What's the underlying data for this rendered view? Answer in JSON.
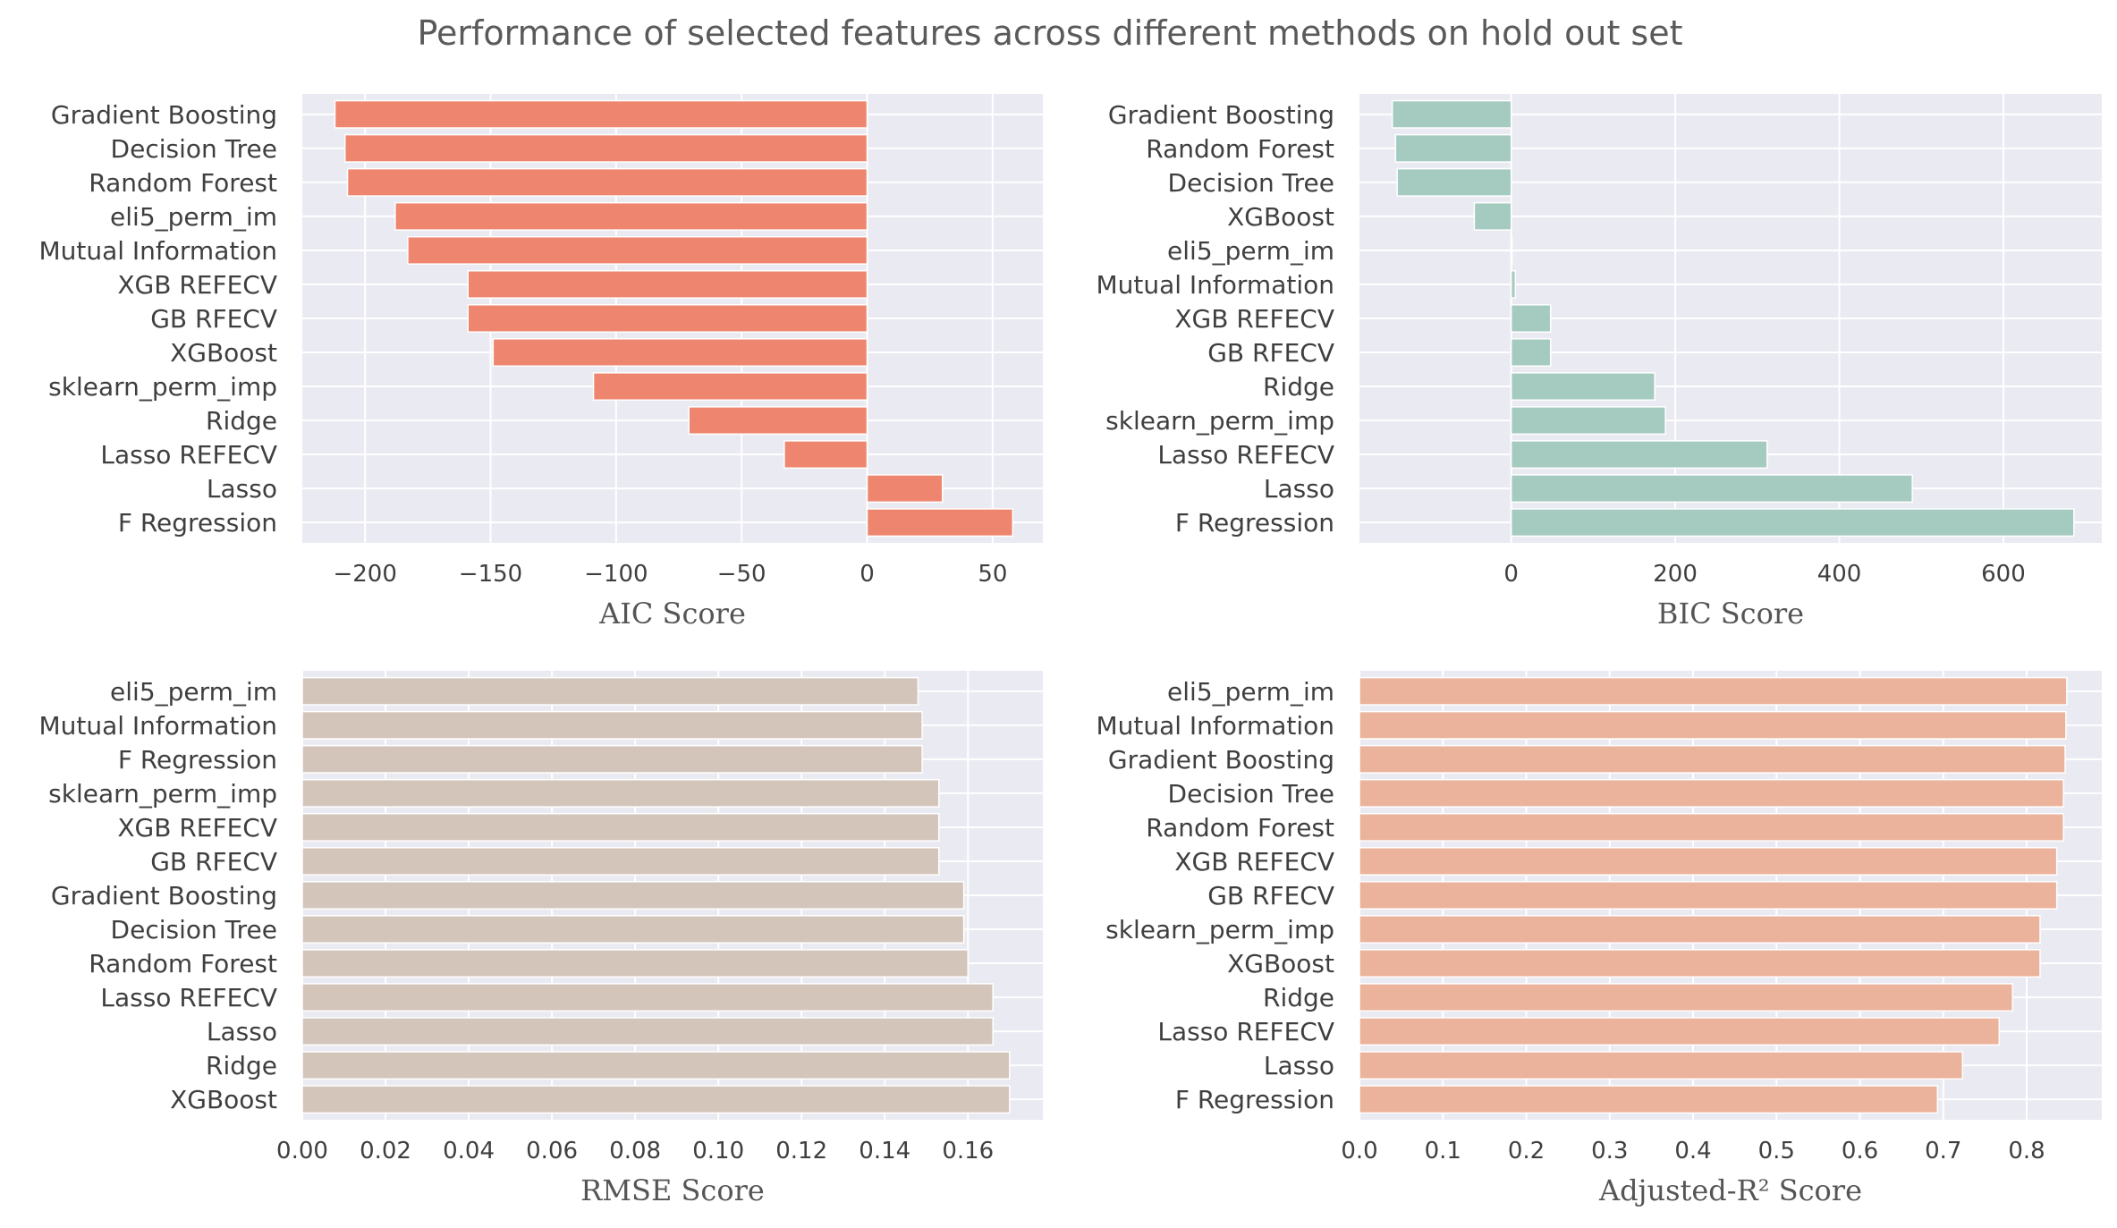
{
  "figure": {
    "title": "Performance of selected features across different methods on hold out set"
  },
  "chart_data": [
    {
      "type": "bar",
      "orientation": "horizontal",
      "xlabel": "AIC Score",
      "color": "#ee866f",
      "xlim": [
        -225,
        70
      ],
      "xticks": [
        -200,
        -150,
        -100,
        -50,
        0,
        50
      ],
      "xtick_labels": [
        "−200",
        "−150",
        "−100",
        "−50",
        "0",
        "50"
      ],
      "grid": true,
      "categories": [
        "Gradient Boosting",
        "Decision Tree",
        "Random Forest",
        "eli5_perm_im",
        "Mutual Information",
        "XGB REFECV",
        "GB RFECV",
        "XGBoost",
        "sklearn_perm_imp",
        "Ridge",
        "Lasso REFECV",
        "Lasso",
        "F Regression"
      ],
      "values": [
        -212,
        -208,
        -207,
        -188,
        -183,
        -159,
        -159,
        -149,
        -109,
        -71,
        -33,
        30,
        58
      ]
    },
    {
      "type": "bar",
      "orientation": "horizontal",
      "xlabel": "BIC Score",
      "color": "#a5cac0",
      "xlim": [
        -185,
        720
      ],
      "xticks": [
        0,
        200,
        400,
        600
      ],
      "xtick_labels": [
        "0",
        "200",
        "400",
        "600"
      ],
      "grid": true,
      "categories": [
        "Gradient Boosting",
        "Random Forest",
        "Decision Tree",
        "XGBoost",
        "eli5_perm_im",
        "Mutual Information",
        "XGB REFECV",
        "GB RFECV",
        "Ridge",
        "sklearn_perm_imp",
        "Lasso REFECV",
        "Lasso",
        "F Regression"
      ],
      "values": [
        -145,
        -141,
        -139,
        -45,
        1,
        5,
        48,
        48,
        175,
        188,
        312,
        489,
        686
      ]
    },
    {
      "type": "bar",
      "orientation": "horizontal",
      "xlabel": "RMSE Score",
      "color": "#d4c5bb",
      "xlim": [
        0,
        0.178
      ],
      "xticks": [
        0,
        0.02,
        0.04,
        0.06,
        0.08,
        0.1,
        0.12,
        0.14,
        0.16
      ],
      "xtick_labels": [
        "0.00",
        "0.02",
        "0.04",
        "0.06",
        "0.08",
        "0.10",
        "0.12",
        "0.14",
        "0.16"
      ],
      "grid": true,
      "categories": [
        "eli5_perm_im",
        "Mutual Information",
        "F Regression",
        "sklearn_perm_imp",
        "XGB REFECV",
        "GB RFECV",
        "Gradient Boosting",
        "Decision Tree",
        "Random Forest",
        "Lasso REFECV",
        "Lasso",
        "Ridge",
        "XGBoost"
      ],
      "values": [
        0.148,
        0.149,
        0.149,
        0.153,
        0.153,
        0.153,
        0.159,
        0.159,
        0.16,
        0.166,
        0.166,
        0.17,
        0.17
      ]
    },
    {
      "type": "bar",
      "orientation": "horizontal",
      "xlabel": "Adjusted-R² Score",
      "color": "#ebb29c",
      "xlim": [
        0,
        0.89
      ],
      "xticks": [
        0,
        0.1,
        0.2,
        0.3,
        0.4,
        0.5,
        0.6,
        0.7,
        0.8
      ],
      "xtick_labels": [
        "0.0",
        "0.1",
        "0.2",
        "0.3",
        "0.4",
        "0.5",
        "0.6",
        "0.7",
        "0.8"
      ],
      "grid": true,
      "categories": [
        "eli5_perm_im",
        "Mutual Information",
        "Gradient Boosting",
        "Decision Tree",
        "Random Forest",
        "XGB REFECV",
        "GB RFECV",
        "sklearn_perm_imp",
        "XGBoost",
        "Ridge",
        "Lasso REFECV",
        "Lasso",
        "F Regression"
      ],
      "values": [
        0.848,
        0.847,
        0.846,
        0.844,
        0.844,
        0.836,
        0.836,
        0.816,
        0.816,
        0.783,
        0.767,
        0.723,
        0.693
      ]
    }
  ],
  "colors": {
    "panel_background": "#eaeaf2",
    "grid": "#ffffff"
  }
}
